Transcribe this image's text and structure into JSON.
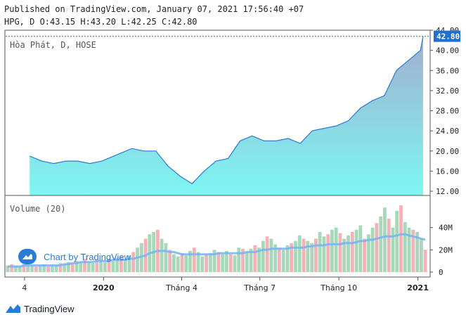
{
  "header": {
    "published": "Published on TradingView.com, January 07, 2021 17:56:40 +07",
    "ohlc": "HPG, D O:43.15 H:43.20 L:42.25 C:42.80"
  },
  "chart_data": {
    "type": "area",
    "title": "Hòa Phát, D, HOSE",
    "price_axis": {
      "ticks": [
        "12.00",
        "16.00",
        "20.00",
        "24.00",
        "28.00",
        "32.00",
        "36.00",
        "40.00",
        "44.00"
      ],
      "ylim": [
        12,
        44
      ],
      "last_price": "42.80"
    },
    "time_axis": [
      "4",
      "2020",
      "Tháng 4",
      "Tháng 7",
      "Tháng 10",
      "2021"
    ],
    "price_series": {
      "x": [
        "2019-10-07",
        "2019-10-21",
        "2019-11-04",
        "2019-11-18",
        "2019-12-02",
        "2019-12-16",
        "2019-12-30",
        "2020-01-13",
        "2020-02-03",
        "2020-02-17",
        "2020-03-02",
        "2020-03-16",
        "2020-03-30",
        "2020-04-13",
        "2020-04-27",
        "2020-05-11",
        "2020-05-25",
        "2020-06-08",
        "2020-06-22",
        "2020-07-06",
        "2020-07-20",
        "2020-08-03",
        "2020-08-17",
        "2020-08-31",
        "2020-09-14",
        "2020-09-28",
        "2020-10-12",
        "2020-10-26",
        "2020-11-09",
        "2020-11-23",
        "2020-12-07",
        "2020-12-21",
        "2021-01-04",
        "2021-01-07"
      ],
      "values": [
        19.0,
        18.0,
        17.5,
        18.0,
        18.0,
        17.5,
        18.0,
        19.0,
        20.5,
        20.0,
        20.0,
        17.0,
        15.0,
        13.5,
        16.0,
        18.0,
        18.5,
        22.0,
        23.0,
        22.0,
        22.0,
        22.5,
        21.5,
        24.0,
        24.5,
        25.0,
        26.0,
        28.5,
        30.0,
        31.0,
        36.0,
        38.0,
        40.0,
        42.8
      ]
    },
    "volume": {
      "label": "Volume (20)",
      "ticks": [
        "0",
        "20M",
        "40M"
      ],
      "ylim": [
        0,
        60
      ],
      "unit": "M",
      "values": [
        6,
        7,
        6,
        5,
        7,
        6,
        6,
        5,
        6,
        7,
        5,
        6,
        6,
        8,
        7,
        9,
        8,
        10,
        9,
        12,
        9,
        8,
        10,
        11,
        9,
        12,
        10,
        13,
        14,
        12,
        15,
        18,
        22,
        26,
        30,
        34,
        36,
        38,
        30,
        26,
        20,
        16,
        14,
        17,
        15,
        19,
        22,
        18,
        14,
        16,
        17,
        20,
        18,
        16,
        19,
        16,
        15,
        22,
        21,
        18,
        21,
        24,
        22,
        28,
        32,
        30,
        25,
        22,
        20,
        24,
        26,
        28,
        33,
        30,
        28,
        26,
        30,
        36,
        32,
        34,
        38,
        40,
        35,
        30,
        33,
        36,
        38,
        42,
        30,
        34,
        40,
        44,
        50,
        58,
        48,
        40,
        55,
        60,
        45,
        40,
        38,
        36,
        30,
        20
      ],
      "ma_values": [
        5,
        5,
        5,
        5,
        6,
        6,
        6,
        6,
        6,
        6,
        6,
        6,
        6,
        6,
        7,
        7,
        8,
        8,
        9,
        9,
        9,
        9,
        10,
        10,
        10,
        10,
        11,
        11,
        11,
        11,
        12,
        12,
        13,
        14,
        15,
        17,
        18,
        19,
        19,
        19,
        18,
        18,
        17,
        16,
        16,
        16,
        16,
        16,
        16,
        16,
        16,
        16,
        17,
        17,
        17,
        17,
        17,
        17,
        17,
        18,
        18,
        18,
        19,
        20,
        20,
        21,
        21,
        21,
        21,
        21,
        22,
        22,
        22,
        22,
        23,
        23,
        24,
        24,
        24,
        25,
        25,
        25,
        25,
        26,
        26,
        26,
        27,
        28,
        28,
        29,
        29,
        30,
        31,
        32,
        32,
        32,
        33,
        34,
        34,
        33,
        32,
        31,
        30,
        29
      ]
    }
  },
  "watermark": {
    "text": "Chart by TradingView"
  },
  "footer": {
    "brand": "TradingView"
  },
  "colors": {
    "line": "#2a7bd6",
    "area_top": "#a1aece",
    "area_bottom": "#7df7f3",
    "vol_up": "#9fd4b2",
    "vol_down": "#f2a9b0",
    "vol_ma": "#73b4f2",
    "price_label": "#1f6fd0"
  }
}
